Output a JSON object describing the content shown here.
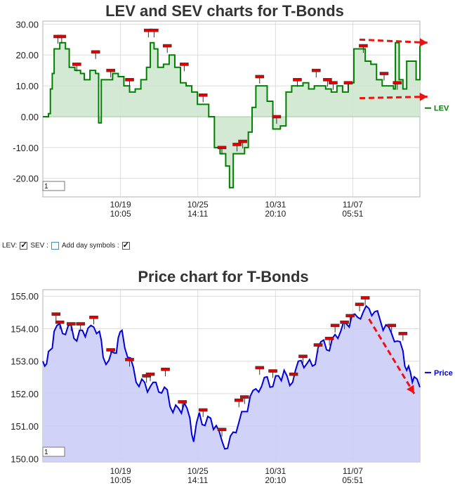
{
  "controls": {
    "lev_label": "LEV:",
    "sev_label": "SEV :",
    "day_label": "Add day symbols :",
    "lev_checked": true,
    "sev_checked": false,
    "day_checked": true
  },
  "chart_data": [
    {
      "id": "lev",
      "type": "line",
      "title": "LEV and SEV charts for T-Bonds",
      "legend": "LEV",
      "legend_position": "right",
      "color": "#008000",
      "fill": "#cfe7cf",
      "ylim": [
        -26,
        31
      ],
      "yticks": [
        30,
        20,
        10,
        0,
        -10,
        -20
      ],
      "ytick_labels": [
        "30.00",
        "20.00",
        "10.00",
        "0.00",
        "-10.00",
        "-20.00"
      ],
      "xticks": [
        {
          "t": 0.206,
          "date": "10/19",
          "time": "10:05"
        },
        {
          "t": 0.411,
          "date": "10/25",
          "time": "14:11"
        },
        {
          "t": 0.617,
          "date": "10/31",
          "time": "20:10"
        },
        {
          "t": 0.822,
          "date": "11/07",
          "time": "05:51"
        }
      ],
      "input_value": "1",
      "series": [
        {
          "values": [
            [
              0,
              0
            ],
            [
              0.015,
              1
            ],
            [
              0.02,
              9
            ],
            [
              0.025,
              14
            ],
            [
              0.03,
              22
            ],
            [
              0.045,
              24
            ],
            [
              0.06,
              22
            ],
            [
              0.07,
              16
            ],
            [
              0.085,
              15
            ],
            [
              0.1,
              14
            ],
            [
              0.11,
              12
            ],
            [
              0.125,
              15
            ],
            [
              0.14,
              14
            ],
            [
              0.148,
              -2
            ],
            [
              0.155,
              12
            ],
            [
              0.17,
              12
            ],
            [
              0.185,
              14
            ],
            [
              0.2,
              13
            ],
            [
              0.215,
              10
            ],
            [
              0.23,
              8
            ],
            [
              0.245,
              9
            ],
            [
              0.26,
              12
            ],
            [
              0.275,
              16
            ],
            [
              0.285,
              24
            ],
            [
              0.295,
              22
            ],
            [
              0.305,
              16
            ],
            [
              0.32,
              17
            ],
            [
              0.335,
              20
            ],
            [
              0.35,
              16
            ],
            [
              0.365,
              11
            ],
            [
              0.38,
              10
            ],
            [
              0.395,
              8
            ],
            [
              0.41,
              4
            ],
            [
              0.425,
              4
            ],
            [
              0.44,
              0
            ],
            [
              0.455,
              -10
            ],
            [
              0.47,
              -12
            ],
            [
              0.485,
              -16
            ],
            [
              0.495,
              -23
            ],
            [
              0.505,
              -12
            ],
            [
              0.52,
              -12
            ],
            [
              0.535,
              -10
            ],
            [
              0.545,
              -5
            ],
            [
              0.555,
              3
            ],
            [
              0.565,
              10
            ],
            [
              0.58,
              10
            ],
            [
              0.595,
              5
            ],
            [
              0.61,
              -4
            ],
            [
              0.63,
              -3
            ],
            [
              0.645,
              8
            ],
            [
              0.66,
              10
            ],
            [
              0.675,
              10
            ],
            [
              0.69,
              11
            ],
            [
              0.705,
              9
            ],
            [
              0.72,
              10
            ],
            [
              0.735,
              10
            ],
            [
              0.75,
              9
            ],
            [
              0.765,
              8
            ],
            [
              0.78,
              10
            ],
            [
              0.795,
              8
            ],
            [
              0.81,
              11
            ],
            [
              0.825,
              22
            ],
            [
              0.84,
              22
            ],
            [
              0.855,
              18
            ],
            [
              0.87,
              17
            ],
            [
              0.885,
              12
            ],
            [
              0.9,
              10
            ],
            [
              0.915,
              10
            ],
            [
              0.93,
              9
            ],
            [
              0.935,
              24
            ],
            [
              0.945,
              12
            ],
            [
              0.955,
              9
            ],
            [
              0.965,
              18
            ],
            [
              0.98,
              18
            ],
            [
              0.99,
              12
            ],
            [
              1.0,
              23
            ]
          ]
        }
      ],
      "markers": [
        [
          0.04,
          26
        ],
        [
          0.05,
          26
        ],
        [
          0.09,
          17
        ],
        [
          0.14,
          21
        ],
        [
          0.18,
          15
        ],
        [
          0.23,
          12
        ],
        [
          0.28,
          28
        ],
        [
          0.295,
          28
        ],
        [
          0.33,
          23
        ],
        [
          0.375,
          17
        ],
        [
          0.425,
          7
        ],
        [
          0.475,
          -10
        ],
        [
          0.515,
          -9
        ],
        [
          0.53,
          -8
        ],
        [
          0.575,
          13
        ],
        [
          0.62,
          0
        ],
        [
          0.675,
          12
        ],
        [
          0.725,
          15
        ],
        [
          0.755,
          12
        ],
        [
          0.77,
          11
        ],
        [
          0.81,
          11
        ],
        [
          0.85,
          23
        ],
        [
          0.905,
          14
        ],
        [
          0.94,
          11
        ]
      ],
      "annotations": [
        {
          "type": "dashed-arrow",
          "from": [
            0.84,
            25
          ],
          "to": [
            1.02,
            24
          ]
        },
        {
          "type": "dashed-arrow",
          "from": [
            0.84,
            6
          ],
          "to": [
            1.02,
            6.5
          ]
        }
      ]
    },
    {
      "id": "price",
      "type": "area",
      "title": "Price chart for T-Bonds",
      "legend": "Price",
      "legend_position": "right",
      "color": "#0000dd",
      "fill": "#cbcdf7",
      "ylim": [
        149.9,
        155.2
      ],
      "yticks": [
        155,
        154,
        153,
        152,
        151,
        150
      ],
      "ytick_labels": [
        "155.00",
        "154.00",
        "153.00",
        "152.00",
        "151.00",
        "150.00"
      ],
      "xticks": [
        {
          "t": 0.206,
          "date": "10/19",
          "time": "10:05"
        },
        {
          "t": 0.411,
          "date": "10/25",
          "time": "14:11"
        },
        {
          "t": 0.617,
          "date": "10/31",
          "time": "20:10"
        },
        {
          "t": 0.822,
          "date": "11/07",
          "time": "05:51"
        }
      ],
      "input_value": "1",
      "series": [
        {
          "values": [
            [
              0,
              153
            ],
            [
              0.01,
              153
            ],
            [
              0.02,
              153.3
            ],
            [
              0.03,
              153.8
            ],
            [
              0.045,
              154.1
            ],
            [
              0.06,
              153.9
            ],
            [
              0.075,
              154.0
            ],
            [
              0.09,
              153.7
            ],
            [
              0.105,
              153.9
            ],
            [
              0.12,
              153.9
            ],
            [
              0.135,
              154.0
            ],
            [
              0.15,
              154.0
            ],
            [
              0.16,
              153.0
            ],
            [
              0.175,
              153.1
            ],
            [
              0.19,
              153.2
            ],
            [
              0.2,
              153.6
            ],
            [
              0.21,
              153.9
            ],
            [
              0.225,
              153.2
            ],
            [
              0.24,
              152.7
            ],
            [
              0.255,
              152.3
            ],
            [
              0.27,
              152.3
            ],
            [
              0.285,
              152.1
            ],
            [
              0.3,
              152.3
            ],
            [
              0.315,
              152.1
            ],
            [
              0.33,
              152.0
            ],
            [
              0.345,
              151.5
            ],
            [
              0.36,
              151.5
            ],
            [
              0.375,
              151.6
            ],
            [
              0.39,
              151.2
            ],
            [
              0.4,
              150.6
            ],
            [
              0.415,
              151.3
            ],
            [
              0.43,
              151.1
            ],
            [
              0.445,
              151.2
            ],
            [
              0.46,
              150.9
            ],
            [
              0.475,
              150.5
            ],
            [
              0.49,
              150.4
            ],
            [
              0.505,
              150.7
            ],
            [
              0.52,
              151.2
            ],
            [
              0.535,
              151.4
            ],
            [
              0.55,
              151.8
            ],
            [
              0.565,
              152.1
            ],
            [
              0.58,
              152.3
            ],
            [
              0.595,
              152.4
            ],
            [
              0.61,
              152.3
            ],
            [
              0.625,
              152.5
            ],
            [
              0.64,
              152.6
            ],
            [
              0.655,
              152.2
            ],
            [
              0.67,
              152.8
            ],
            [
              0.685,
              152.9
            ],
            [
              0.7,
              153.0
            ],
            [
              0.715,
              152.8
            ],
            [
              0.73,
              153.3
            ],
            [
              0.745,
              153.6
            ],
            [
              0.76,
              153.4
            ],
            [
              0.775,
              153.7
            ],
            [
              0.79,
              154.0
            ],
            [
              0.805,
              154.1
            ],
            [
              0.82,
              154.3
            ],
            [
              0.835,
              154.3
            ],
            [
              0.85,
              154.6
            ],
            [
              0.865,
              154.5
            ],
            [
              0.88,
              154.6
            ],
            [
              0.895,
              154.2
            ],
            [
              0.91,
              154.0
            ],
            [
              0.925,
              153.8
            ],
            [
              0.94,
              153.7
            ],
            [
              0.955,
              153.2
            ],
            [
              0.965,
              152.8
            ],
            [
              0.975,
              152.6
            ],
            [
              0.985,
              152.4
            ],
            [
              1.0,
              152.2
            ]
          ]
        }
      ],
      "markers": [
        [
          0.035,
          154.45
        ],
        [
          0.045,
          154.2
        ],
        [
          0.075,
          154.15
        ],
        [
          0.1,
          154.15
        ],
        [
          0.135,
          154.35
        ],
        [
          0.18,
          153.35
        ],
        [
          0.23,
          153.05
        ],
        [
          0.275,
          152.55
        ],
        [
          0.285,
          152.6
        ],
        [
          0.325,
          152.75
        ],
        [
          0.37,
          151.75
        ],
        [
          0.425,
          151.5
        ],
        [
          0.475,
          150.9
        ],
        [
          0.52,
          151.8
        ],
        [
          0.535,
          151.9
        ],
        [
          0.575,
          152.8
        ],
        [
          0.61,
          152.7
        ],
        [
          0.665,
          152.6
        ],
        [
          0.69,
          153.15
        ],
        [
          0.73,
          153.5
        ],
        [
          0.76,
          153.7
        ],
        [
          0.775,
          154.1
        ],
        [
          0.8,
          154.2
        ],
        [
          0.815,
          154.4
        ],
        [
          0.84,
          154.75
        ],
        [
          0.855,
          154.95
        ],
        [
          0.925,
          154.1
        ],
        [
          0.955,
          153.85
        ]
      ],
      "annotations": [
        {
          "type": "dashed-arrow",
          "from": [
            0.865,
            154.3
          ],
          "to": [
            0.985,
            152.0
          ]
        }
      ]
    }
  ]
}
